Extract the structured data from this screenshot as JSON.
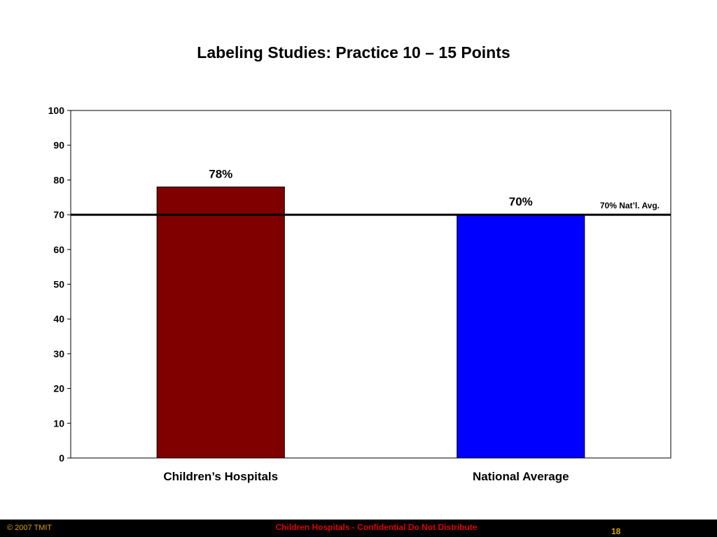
{
  "slide": {
    "title": "Labeling Studies: Practice 10 – 15 Points"
  },
  "chart_data": {
    "type": "bar",
    "title": "Labeling Studies: Practice 10 – 15 Points",
    "categories": [
      "Children’s Hospitals",
      "National Average"
    ],
    "values": [
      78,
      70
    ],
    "data_labels": [
      "78%",
      "70%"
    ],
    "bar_colors": [
      "#800000",
      "#0000ff"
    ],
    "xlabel": "",
    "ylabel": "",
    "ylim": [
      0,
      100
    ],
    "yticks": [
      0,
      10,
      20,
      30,
      40,
      50,
      60,
      70,
      80,
      90,
      100
    ],
    "grid": false,
    "reference_line": {
      "value": 70,
      "label": "70% Nat’l. Avg."
    }
  },
  "footer": {
    "copyright": "© 2007 TMIT",
    "confidential": "Children Hospitals - Confidential Do Not Distribute",
    "page_number": "18"
  },
  "colors": {
    "footer_background": "#000000",
    "footer_gold": "#d9a600",
    "footer_red": "#e00000"
  }
}
